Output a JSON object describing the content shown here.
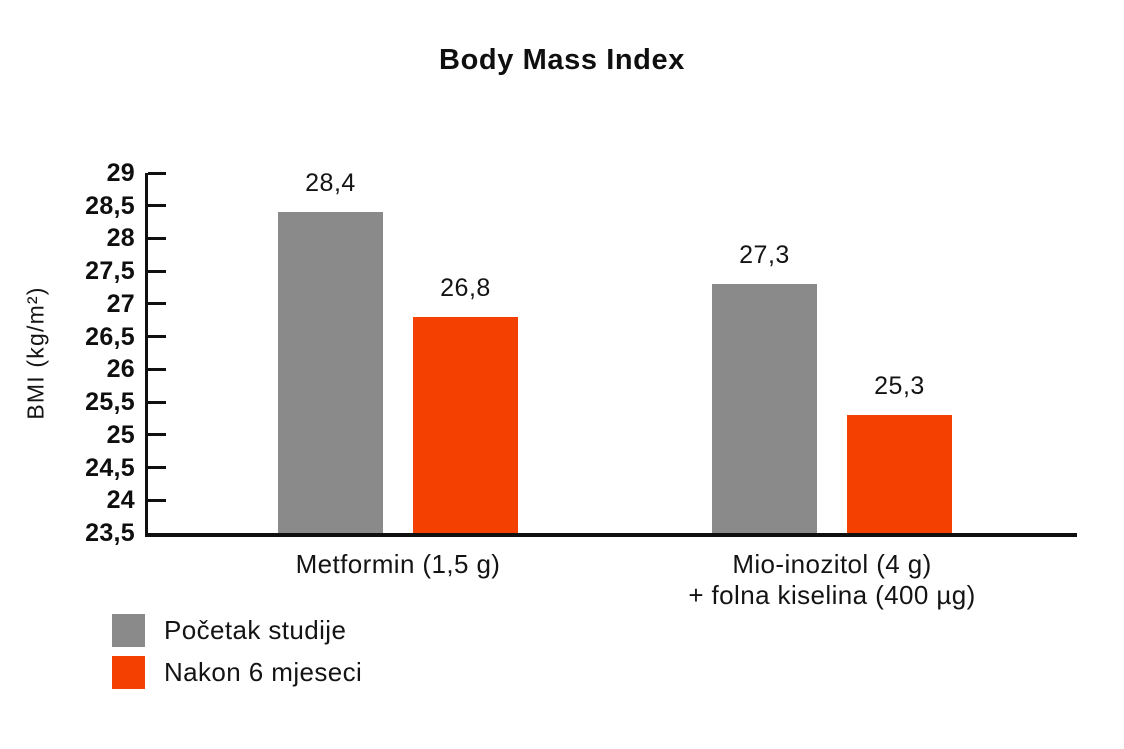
{
  "title": "Body Mass Index",
  "y_axis": {
    "label": "BMI (kg/m²)"
  },
  "legend": {
    "items": [
      {
        "label": "Početak studije",
        "color": "#8A8A8A"
      },
      {
        "label": "Nakon 6 mjeseci",
        "color": "#F44102"
      }
    ]
  },
  "chart_data": {
    "type": "bar",
    "title": "Body Mass Index",
    "xlabel": "",
    "ylabel": "BMI (kg/m²)",
    "ylim": [
      23.5,
      29
    ],
    "ytick_step": 0.5,
    "ytick_labels": [
      "23,5",
      "24",
      "24,5",
      "25",
      "25,5",
      "26",
      "26,5",
      "27",
      "27,5",
      "28",
      "28,5",
      "29"
    ],
    "grid": false,
    "legend_position": "bottom-left",
    "categories": [
      {
        "lines": [
          "Metformin (1,5 g)"
        ]
      },
      {
        "lines": [
          "Mio-inozitol (4 g)",
          "+ folna kiselina (400 µg)"
        ]
      }
    ],
    "series": [
      {
        "name": "Početak studije",
        "color": "#8A8A8A",
        "values": [
          28.4,
          27.3
        ],
        "value_labels": [
          "28,4",
          "27,3"
        ]
      },
      {
        "name": "Nakon 6 mjeseci",
        "color": "#F44102",
        "values": [
          26.8,
          25.3
        ],
        "value_labels": [
          "26,8",
          "25,3"
        ]
      }
    ]
  }
}
